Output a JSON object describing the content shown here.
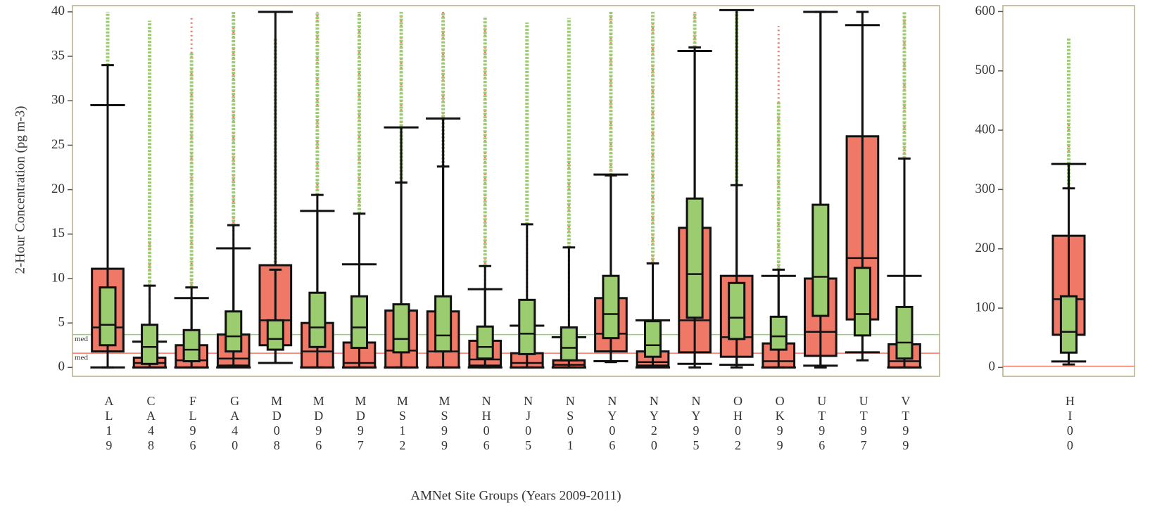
{
  "chart_data": [
    {
      "type": "box",
      "ylabel": "2-Hour Concentration (pg m-3)",
      "xlabel": "AMNet Site Groups (Years 2009-2011)",
      "categories": [
        "AL19",
        "CA48",
        "FL96",
        "GA40",
        "MD08",
        "MD96",
        "MD97",
        "MS12",
        "MS99",
        "NH06",
        "NJ05",
        "NS01",
        "NY06",
        "NY20",
        "NY95",
        "OH02",
        "OK99",
        "UT96",
        "UT97",
        "VT99"
      ],
      "ylim": [
        -1,
        40.7
      ],
      "yticks": [
        0,
        5,
        10,
        15,
        20,
        25,
        30,
        35,
        40
      ],
      "ref_lines": [
        {
          "value": 3.7,
          "color": "#8fd36a",
          "label": "med"
        },
        {
          "value": 1.6,
          "color": "#f07867",
          "label": "med"
        }
      ],
      "series": [
        {
          "color": "#f07867",
          "boxes": [
            {
              "q1": 1.8,
              "median": 4.5,
              "q3": 11.1,
              "whislo": 0,
              "whishi": 29.5,
              "flier_max": null
            },
            {
              "q1": 0,
              "median": 0.5,
              "q3": 1.1,
              "whislo": 0,
              "whishi": 2.9,
              "flier_max": 14
            },
            {
              "q1": 0,
              "median": 0.8,
              "q3": 2.5,
              "whislo": 0,
              "whishi": 7.8,
              "flier_max": 39.5
            },
            {
              "q1": 0.2,
              "median": 1,
              "q3": 3.7,
              "whislo": 0,
              "whishi": 13.4,
              "flier_max": 39.9
            },
            {
              "q1": 2.5,
              "median": 5.3,
              "q3": 11.5,
              "whislo": 0.5,
              "whishi": 40,
              "flier_max": null
            },
            {
              "q1": 0,
              "median": 1.8,
              "q3": 5,
              "whislo": 0,
              "whishi": 17.6,
              "flier_max": 40
            },
            {
              "q1": 0,
              "median": 0.5,
              "q3": 2.8,
              "whislo": 0,
              "whishi": 11.6,
              "flier_max": 39.8
            },
            {
              "q1": 0,
              "median": 1.9,
              "q3": 6.4,
              "whislo": 0,
              "whishi": 27,
              "flier_max": 40
            },
            {
              "q1": 0,
              "median": 1.8,
              "q3": 6.3,
              "whislo": 0,
              "whishi": 28,
              "flier_max": 40
            },
            {
              "q1": 0.2,
              "median": 0.9,
              "q3": 3,
              "whislo": 0,
              "whishi": 8.8,
              "flier_max": 39.5
            },
            {
              "q1": 0,
              "median": 0.5,
              "q3": 1.6,
              "whislo": 0,
              "whishi": 4.7,
              "flier_max": 16
            },
            {
              "q1": 0,
              "median": 0.3,
              "q3": 0.8,
              "whislo": 0,
              "whishi": 3.4,
              "flier_max": 24
            },
            {
              "q1": 1.8,
              "median": 3.8,
              "q3": 7.8,
              "whislo": 0.7,
              "whishi": 21.7,
              "flier_max": 40
            },
            {
              "q1": 0.2,
              "median": 0.6,
              "q3": 1.8,
              "whislo": 0,
              "whishi": 5.3,
              "flier_max": 40
            },
            {
              "q1": 1.7,
              "median": 5.3,
              "q3": 15.7,
              "whislo": 0.4,
              "whishi": 35.6,
              "flier_max": 40
            },
            {
              "q1": 1.2,
              "median": 3.4,
              "q3": 10.3,
              "whislo": 0.3,
              "whishi": 40.2,
              "flier_max": null
            },
            {
              "q1": 0,
              "median": 0.7,
              "q3": 2.7,
              "whislo": 0,
              "whishi": 10.3,
              "flier_max": 38.4
            },
            {
              "q1": 1.3,
              "median": 4,
              "q3": 10,
              "whislo": 0.2,
              "whishi": 40,
              "flier_max": null
            },
            {
              "q1": 5.4,
              "median": 12.3,
              "q3": 26,
              "whislo": 1.7,
              "whishi": 38.5,
              "flier_max": null
            },
            {
              "q1": 0,
              "median": 0.7,
              "q3": 2.6,
              "whislo": 0,
              "whishi": 10.3,
              "flier_max": 39.8
            }
          ]
        },
        {
          "color": "#9ccc70",
          "boxes": [
            {
              "q1": 2.5,
              "median": 4.8,
              "q3": 9,
              "whislo": 0,
              "whishi": 34,
              "flier_max": 40
            },
            {
              "q1": 0.4,
              "median": 2.3,
              "q3": 4.8,
              "whislo": 0,
              "whishi": 9.2,
              "flier_max": 39
            },
            {
              "q1": 0.7,
              "median": 2,
              "q3": 4.2,
              "whislo": 0,
              "whishi": 9,
              "flier_max": 35.5
            },
            {
              "q1": 1.8,
              "median": 3.5,
              "q3": 6.3,
              "whislo": 0.2,
              "whishi": 16,
              "flier_max": 40
            },
            {
              "q1": 2,
              "median": 3.2,
              "q3": 5.3,
              "whislo": 0.5,
              "whishi": 11,
              "flier_max": 37
            },
            {
              "q1": 2.3,
              "median": 4.5,
              "q3": 8.4,
              "whislo": 0,
              "whishi": 19.4,
              "flier_max": 40
            },
            {
              "q1": 2.2,
              "median": 4.5,
              "q3": 8,
              "whislo": 0,
              "whishi": 17.3,
              "flier_max": 40
            },
            {
              "q1": 1.7,
              "median": 3.2,
              "q3": 7.1,
              "whislo": 0,
              "whishi": 20.8,
              "flier_max": 40
            },
            {
              "q1": 1.8,
              "median": 3.6,
              "q3": 8,
              "whislo": 0,
              "whishi": 22.6,
              "flier_max": 40
            },
            {
              "q1": 1,
              "median": 2.3,
              "q3": 4.6,
              "whislo": 0,
              "whishi": 11.4,
              "flier_max": 39.5
            },
            {
              "q1": 1.5,
              "median": 3.8,
              "q3": 7.6,
              "whislo": 0,
              "whishi": 16.1,
              "flier_max": 38.8
            },
            {
              "q1": 0.8,
              "median": 2.2,
              "q3": 4.5,
              "whislo": 0,
              "whishi": 13.5,
              "flier_max": 39.3
            },
            {
              "q1": 3.3,
              "median": 6,
              "q3": 10.3,
              "whislo": 0.6,
              "whishi": 21.6,
              "flier_max": 40
            },
            {
              "q1": 1.2,
              "median": 2.5,
              "q3": 5.2,
              "whislo": 0.1,
              "whishi": 11.7,
              "flier_max": 40
            },
            {
              "q1": 5.6,
              "median": 10.5,
              "q3": 19,
              "whislo": 0,
              "whishi": 36,
              "flier_max": 40
            },
            {
              "q1": 3.2,
              "median": 5.6,
              "q3": 9.5,
              "whislo": 0,
              "whishi": 20.5,
              "flier_max": 40
            },
            {
              "q1": 2,
              "median": 3.5,
              "q3": 5.7,
              "whislo": 0,
              "whishi": 11,
              "flier_max": 30
            },
            {
              "q1": 5.8,
              "median": 10.2,
              "q3": 18.3,
              "whislo": 0,
              "whishi": 40,
              "flier_max": null
            },
            {
              "q1": 3.6,
              "median": 6,
              "q3": 11.2,
              "whislo": 0.8,
              "whishi": 40,
              "flier_max": null
            },
            {
              "q1": 1,
              "median": 2.8,
              "q3": 6.8,
              "whislo": 0,
              "whishi": 23.5,
              "flier_max": 40
            }
          ]
        }
      ]
    },
    {
      "type": "box",
      "categories": [
        "HI00"
      ],
      "ylim": [
        -15,
        610
      ],
      "yticks": [
        0,
        100,
        200,
        300,
        400,
        500,
        600
      ],
      "ref_lines": [
        {
          "value": 2,
          "color": "#f07867"
        }
      ],
      "series": [
        {
          "color": "#f07867",
          "boxes": [
            {
              "q1": 55,
              "median": 115,
              "q3": 222,
              "whislo": 10,
              "whishi": 343,
              "flier_max": 420
            }
          ]
        },
        {
          "color": "#9ccc70",
          "boxes": [
            {
              "q1": 25,
              "median": 60,
              "q3": 120,
              "whislo": 5,
              "whishi": 302,
              "flier_max": 555
            }
          ]
        }
      ]
    }
  ]
}
